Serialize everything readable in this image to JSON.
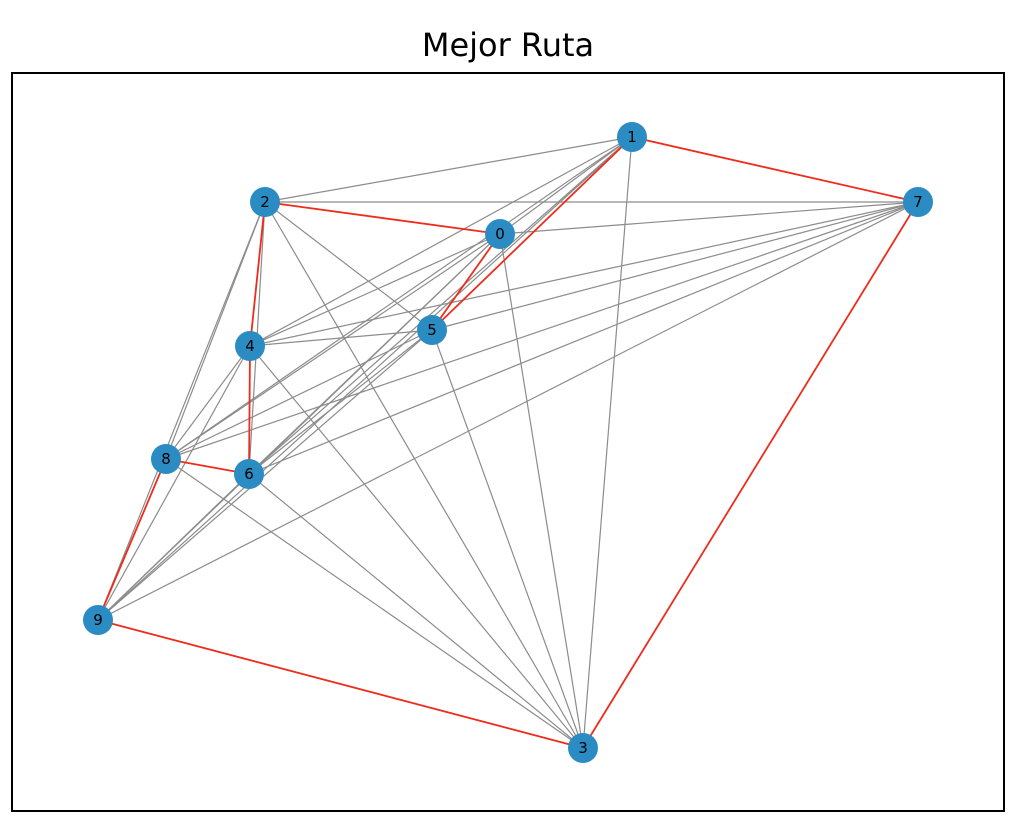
{
  "title": "Mejor Ruta",
  "colors": {
    "node": "#2b8cc4",
    "edge": "#8c8c8c",
    "route": "#ee2c1c",
    "frame": "#000000",
    "background": "#ffffff"
  },
  "graph": {
    "nodes": [
      "0",
      "1",
      "2",
      "3",
      "4",
      "5",
      "6",
      "7",
      "8",
      "9"
    ],
    "complete_graph": true,
    "best_route": [
      "1",
      "7",
      "3",
      "9",
      "8",
      "6",
      "4",
      "2",
      "0",
      "5",
      "1"
    ]
  }
}
